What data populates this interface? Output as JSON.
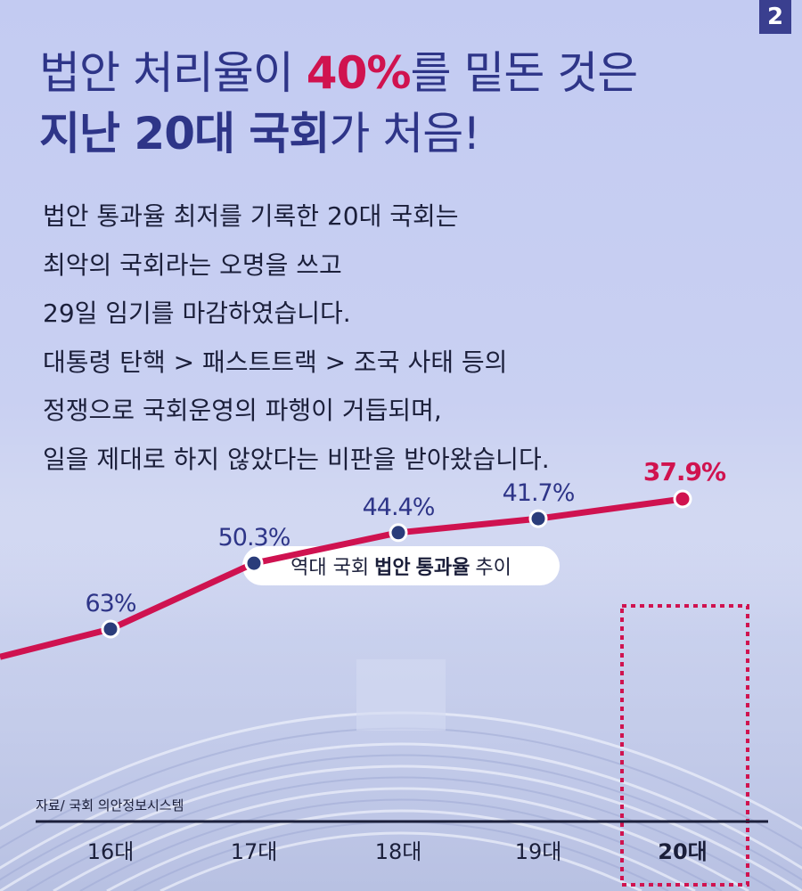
{
  "page_number": "2",
  "headline": {
    "line1_a": "법안 처리율이 ",
    "line1_highlight": "40%",
    "line1_b": "를 밑돈 것은",
    "line2_bold": "지난 20대 국회",
    "line2_rest": "가 처음!"
  },
  "body_lines": [
    "법안 통과율 최저를 기록한 20대 국회는",
    "최악의 국회라는 오명을 쓰고",
    "29일 임기를 마감하였습니다.",
    "대통령 탄핵 > 패스트트랙 > 조국 사태 등의",
    "정쟁으로 국회운영의 파행이 거듭되며,",
    "일을 제대로 하지 않았다는 비판을 받아왔습니다."
  ],
  "chart_title": {
    "prefix": "역대 국회",
    "bold1": "법안",
    "bold2": "통과율",
    "suffix": "추이"
  },
  "source": "자료/ 국회 의안정보시스템",
  "colors": {
    "navy": "#2e3588",
    "highlight": "#d0134f",
    "line": "#cf1250",
    "point": "#2a3c7a"
  },
  "chart_data": {
    "type": "line",
    "categories": [
      "16대",
      "17대",
      "18대",
      "19대",
      "20대"
    ],
    "values": [
      63,
      50.3,
      44.4,
      41.7,
      37.9
    ],
    "value_labels": [
      "63%",
      "50.3%",
      "44.4%",
      "41.7%",
      "37.9%"
    ],
    "highlighted_category": "20대",
    "title": "역대 국회 법안 통과율 추이",
    "xlabel": "",
    "ylabel": "",
    "grid": false
  }
}
